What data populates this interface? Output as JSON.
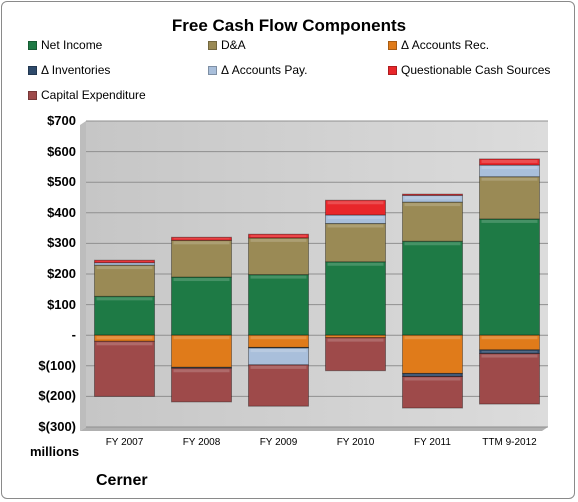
{
  "chart_data": {
    "type": "bar",
    "stacked": true,
    "title": "Free Cash Flow Components",
    "categories": [
      "FY 2007",
      "FY 2008",
      "FY 2009",
      "FY 2010",
      "FY 2011",
      "TTM 9-2012"
    ],
    "ylim": [
      -300,
      700
    ],
    "yticks": [
      700,
      600,
      500,
      400,
      300,
      200,
      100,
      0,
      -100,
      -200,
      -300
    ],
    "ytick_labels": [
      "$700",
      "$600",
      "$500",
      "$400",
      "$300",
      "$200",
      "$100",
      "-",
      "$(100)",
      "$(200)",
      "$(300)"
    ],
    "units_label": "millions",
    "company": "Cerner",
    "legend_position": "top",
    "grid": true,
    "series": [
      {
        "name": "Net Income",
        "color": "#1e7a45",
        "values": [
          127,
          190,
          198,
          240,
          307,
          380
        ]
      },
      {
        "name": "D&A",
        "color": "#9a8a55",
        "values": [
          102,
          120,
          120,
          125,
          128,
          138
        ]
      },
      {
        "name": "Δ Accounts Rec.",
        "color": "#e07b1a",
        "values": [
          -20,
          -105,
          -40,
          -8,
          -125,
          -48
        ]
      },
      {
        "name": "Δ Inventories",
        "color": "#2e4a6b",
        "values": [
          0,
          -3,
          -2,
          0,
          -10,
          -12
        ]
      },
      {
        "name": "Δ Accounts Pay.",
        "color": "#a9bfdb",
        "values": [
          8,
          0,
          -55,
          28,
          22,
          38
        ]
      },
      {
        "name": "Questionable Cash Sources",
        "color": "#e8262a",
        "values": [
          8,
          10,
          12,
          48,
          4,
          20
        ]
      },
      {
        "name": "Capital Expenditure",
        "color": "#9e4a4a",
        "values": [
          -180,
          -110,
          -135,
          -108,
          -103,
          -165
        ]
      }
    ]
  }
}
